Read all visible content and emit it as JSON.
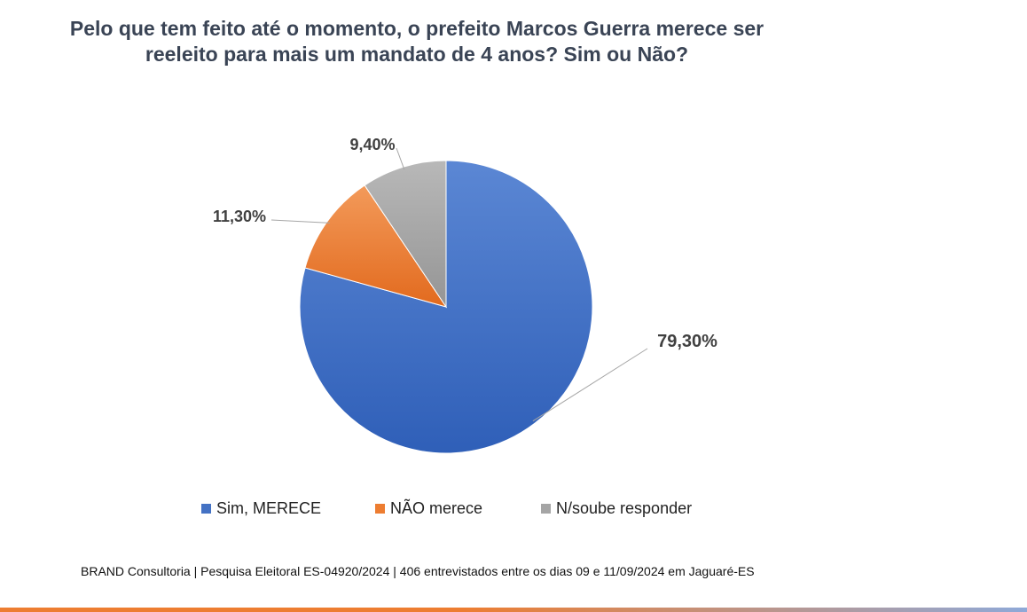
{
  "title_lines": [
    "Pelo que tem feito até o momento, o prefeito Marcos Guerra merece ser",
    "reeleito para mais um mandato de 4 anos? Sim ou Não?"
  ],
  "chart_data": {
    "type": "pie",
    "title": "Pelo que tem feito até o momento, o prefeito Marcos Guerra merece ser reeleito para mais um mandato de 4 anos? Sim ou Não?",
    "categories": [
      "Sim, MERECE",
      "NÃO merece",
      "N/soube responder"
    ],
    "values": [
      79.3,
      11.3,
      9.4
    ],
    "data_labels": [
      "79,30%",
      "11,30%",
      "9,40%"
    ],
    "colors": [
      "#4472c4",
      "#ed7d31",
      "#a5a5a5"
    ],
    "legend_position": "bottom",
    "start_angle": "12 o'clock, clockwise"
  },
  "footer": "BRAND Consultoria | Pesquisa Eleitoral ES-04920/2024 | 406 entrevistados entre os dias 09 e 11/09/2024 em Jaguaré-ES",
  "bottom_bar_colors": [
    "#ed7d31",
    "#8fa9d8"
  ]
}
